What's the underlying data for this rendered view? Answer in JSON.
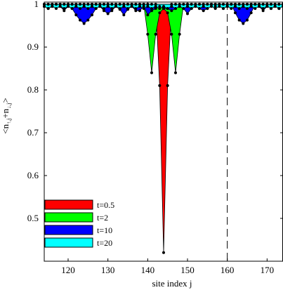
{
  "chart_data": {
    "type": "area",
    "xlabel": "site index j",
    "ylabel_main": "<n",
    "ylabel_sub1": "↑,j",
    "ylabel_mid": "+n",
    "ylabel_sub2": "↓,j",
    "ylabel_end": ">",
    "xlim": [
      114,
      174
    ],
    "ylim": [
      0.4,
      1.005
    ],
    "xticks": [
      120,
      130,
      140,
      150,
      160,
      170
    ],
    "yticks": [
      0.5,
      0.6,
      0.7,
      0.8,
      0.9,
      1
    ],
    "ytick_labels": [
      "0.5",
      "0.6",
      "0.7",
      "0.8",
      "0.9",
      "1"
    ],
    "reference_line_x": 160,
    "legend_position": "bottom-left",
    "colors": {
      "t=0.5": "#ff0000",
      "t=2": "#00ff00",
      "t=10": "#0000ff",
      "t=20": "#00ffff"
    },
    "series": [
      {
        "name": "t=0.5",
        "color": "#ff0000",
        "x": [
          114,
          115,
          116,
          117,
          118,
          119,
          120,
          121,
          122,
          123,
          124,
          125,
          126,
          127,
          128,
          129,
          130,
          131,
          132,
          133,
          134,
          135,
          136,
          137,
          138,
          139,
          140,
          141,
          142,
          143,
          144,
          145,
          146,
          147,
          148,
          149,
          150,
          151,
          152,
          153,
          154,
          155,
          156,
          157,
          158,
          159,
          160,
          161,
          162,
          163,
          164,
          165,
          166,
          167,
          168,
          169,
          170,
          171,
          172,
          173,
          174
        ],
        "y": [
          1,
          1,
          1,
          1,
          1,
          1,
          1,
          1,
          1,
          1,
          1,
          1,
          1,
          1,
          1,
          1,
          1,
          1,
          1,
          1,
          1,
          1,
          1,
          1,
          1,
          1,
          1,
          1,
          1,
          0.81,
          0.42,
          0.81,
          1,
          1,
          1,
          1,
          1,
          1,
          1,
          1,
          1,
          1,
          1,
          1,
          1,
          1,
          1,
          1,
          1,
          1,
          1,
          1,
          1,
          1,
          1,
          1,
          1,
          1,
          1,
          1,
          1
        ]
      },
      {
        "name": "t=2",
        "color": "#00ff00",
        "x": [
          114,
          115,
          116,
          117,
          118,
          119,
          120,
          121,
          122,
          123,
          124,
          125,
          126,
          127,
          128,
          129,
          130,
          131,
          132,
          133,
          134,
          135,
          136,
          137,
          138,
          139,
          140,
          141,
          142,
          143,
          144,
          145,
          146,
          147,
          148,
          149,
          150,
          151,
          152,
          153,
          154,
          155,
          156,
          157,
          158,
          159,
          160,
          161,
          162,
          163,
          164,
          165,
          166,
          167,
          168,
          169,
          170,
          171,
          172,
          173,
          174
        ],
        "y": [
          1,
          1,
          1,
          1,
          1,
          1,
          1,
          1,
          1,
          1,
          1,
          1,
          1,
          1,
          1,
          1,
          1,
          1,
          1,
          1,
          1,
          1,
          1,
          1,
          1,
          1,
          0.93,
          0.84,
          0.93,
          0.98,
          0.99,
          0.98,
          0.93,
          0.84,
          0.93,
          1,
          1,
          1,
          1,
          1,
          1,
          1,
          1,
          1,
          1,
          1,
          1,
          1,
          1,
          1,
          1,
          1,
          1,
          1,
          1,
          1,
          1,
          1,
          1,
          1,
          1
        ]
      },
      {
        "name": "t=10",
        "color": "#0000ff",
        "x": [
          114,
          115,
          116,
          117,
          118,
          119,
          120,
          121,
          122,
          123,
          124,
          125,
          126,
          127,
          128,
          129,
          130,
          131,
          132,
          133,
          134,
          135,
          136,
          137,
          138,
          139,
          140,
          141,
          142,
          143,
          144,
          145,
          146,
          147,
          148,
          149,
          150,
          151,
          152,
          153,
          154,
          155,
          156,
          157,
          158,
          159,
          160,
          161,
          162,
          163,
          164,
          165,
          166,
          167,
          168,
          169,
          170,
          171,
          172,
          173,
          174
        ],
        "y": [
          0.995,
          0.99,
          0.995,
          1,
          0.995,
          0.985,
          0.995,
          0.99,
          0.975,
          0.963,
          0.955,
          0.963,
          0.975,
          0.99,
          0.995,
          0.985,
          0.978,
          0.985,
          0.995,
          0.988,
          0.975,
          0.988,
          0.995,
          0.985,
          0.985,
          0.995,
          0.975,
          0.985,
          0.99,
          0.995,
          0.99,
          0.99,
          0.985,
          0.99,
          0.995,
          0.99,
          0.978,
          0.99,
          0.995,
          0.99,
          0.985,
          0.99,
          1,
          0.995,
          1,
          0.99,
          0.995,
          1,
          0.98,
          0.963,
          0.955,
          0.963,
          0.98,
          1,
          0.995,
          0.985,
          0.995,
          0.99,
          0.995,
          0.99,
          1
        ]
      },
      {
        "name": "t=20",
        "color": "#00ffff",
        "x": [
          114,
          115,
          116,
          117,
          118,
          119,
          120,
          121,
          122,
          123,
          124,
          125,
          126,
          127,
          128,
          129,
          130,
          131,
          132,
          133,
          134,
          135,
          136,
          137,
          138,
          139,
          140,
          141,
          142,
          143,
          144,
          145,
          146,
          147,
          148,
          149,
          150,
          151,
          152,
          153,
          154,
          155,
          156,
          157,
          158,
          159,
          160,
          161,
          162,
          163,
          164,
          165,
          166,
          167,
          168,
          169,
          170,
          171,
          172,
          173,
          174
        ],
        "y": [
          0.995,
          0.99,
          0.995,
          0.99,
          0.995,
          0.99,
          0.995,
          0.99,
          0.995,
          0.99,
          0.995,
          0.99,
          0.995,
          0.99,
          0.995,
          0.99,
          0.995,
          0.99,
          0.995,
          0.99,
          0.995,
          0.99,
          0.995,
          0.99,
          0.995,
          0.99,
          0.995,
          0.99,
          0.995,
          0.99,
          0.995,
          0.99,
          0.995,
          0.99,
          0.995,
          0.99,
          0.995,
          0.99,
          0.995,
          0.99,
          0.995,
          0.99,
          0.995,
          0.99,
          0.995,
          0.99,
          0.995,
          0.99,
          0.995,
          0.99,
          0.995,
          0.99,
          0.995,
          0.99,
          0.995,
          0.99,
          0.995,
          0.99,
          0.995,
          0.99,
          0.995
        ]
      }
    ]
  }
}
